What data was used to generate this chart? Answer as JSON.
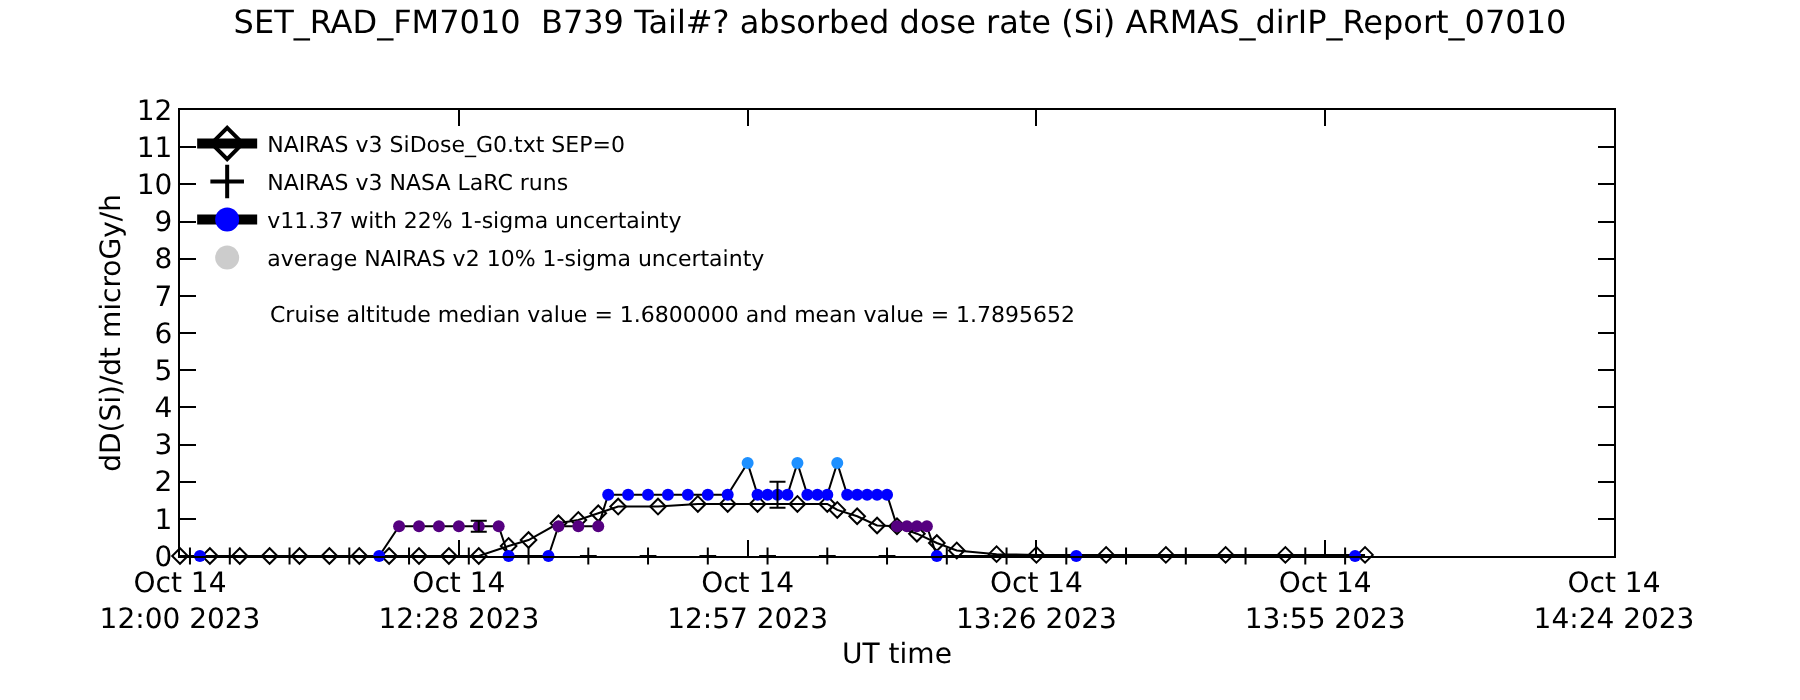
{
  "chart_data": {
    "type": "line",
    "title": "SET_RAD_FM7010  B739 Tail#? absorbed dose rate (Si) ARMAS_dirIP_Report_07010",
    "xlabel": "UT time",
    "ylabel": "dD(Si)/dt microGy/h",
    "xlim": [
      "2023-10-14T12:00",
      "2023-10-14T14:24"
    ],
    "xticks": [
      {
        "value": "2023-10-14T12:00",
        "label": "Oct 14\n12:00 2023"
      },
      {
        "value": "2023-10-14T12:28",
        "label": "Oct 14\n12:28 2023"
      },
      {
        "value": "2023-10-14T12:57",
        "label": "Oct 14\n12:57 2023"
      },
      {
        "value": "2023-10-14T13:26",
        "label": "Oct 14\n13:26 2023"
      },
      {
        "value": "2023-10-14T13:55",
        "label": "Oct 14\n13:55 2023"
      },
      {
        "value": "2023-10-14T14:24",
        "label": "Oct 14\n14:24 2023"
      }
    ],
    "ylim": [
      0,
      12
    ],
    "yticks": [
      0,
      1,
      2,
      3,
      4,
      5,
      6,
      7,
      8,
      9,
      10,
      11,
      12
    ],
    "legend": "top left",
    "series": [
      {
        "name": "NAIRAS v3 SiDose_G0.txt SEP=0",
        "color": "#000000",
        "marker": "diamond",
        "x": [
          "2023-10-14T12:00",
          "2023-10-14T12:03",
          "2023-10-14T12:06",
          "2023-10-14T12:09",
          "2023-10-14T12:12",
          "2023-10-14T12:15",
          "2023-10-14T12:18",
          "2023-10-14T12:21",
          "2023-10-14T12:24",
          "2023-10-14T12:27",
          "2023-10-14T12:30",
          "2023-10-14T12:33",
          "2023-10-14T12:35",
          "2023-10-14T12:38",
          "2023-10-14T12:40",
          "2023-10-14T12:42",
          "2023-10-14T12:44",
          "2023-10-14T12:48",
          "2023-10-14T12:52",
          "2023-10-14T12:55",
          "2023-10-14T12:58",
          "2023-10-14T13:02",
          "2023-10-14T13:05",
          "2023-10-14T13:06",
          "2023-10-14T13:08",
          "2023-10-14T13:10",
          "2023-10-14T13:12",
          "2023-10-14T13:14",
          "2023-10-14T13:16",
          "2023-10-14T13:18",
          "2023-10-14T13:22",
          "2023-10-14T13:26",
          "2023-10-14T13:33",
          "2023-10-14T13:39",
          "2023-10-14T13:45",
          "2023-10-14T13:51",
          "2023-10-14T13:59"
        ],
        "values": [
          0,
          0,
          0,
          0,
          0,
          0,
          0,
          0,
          0,
          0,
          0,
          0.27,
          0.43,
          0.88,
          0.97,
          1.15,
          1.33,
          1.33,
          1.4,
          1.4,
          1.4,
          1.4,
          1.4,
          1.24,
          1.07,
          0.82,
          0.8,
          0.6,
          0.35,
          0.15,
          0.05,
          0.03,
          0.03,
          0.03,
          0.03,
          0.03,
          0.03
        ]
      },
      {
        "name": "NAIRAS v3 NASA LaRC runs",
        "type": "scatter",
        "color": "#000000",
        "marker": "cross",
        "x": [
          "2023-10-14T12:01",
          "2023-10-14T12:05",
          "2023-10-14T12:11",
          "2023-10-14T12:17",
          "2023-10-14T12:23",
          "2023-10-14T12:29",
          "2023-10-14T12:35",
          "2023-10-14T12:41",
          "2023-10-14T12:47",
          "2023-10-14T12:53",
          "2023-10-14T12:59",
          "2023-10-14T13:05",
          "2023-10-14T13:11",
          "2023-10-14T13:17",
          "2023-10-14T13:23",
          "2023-10-14T13:29",
          "2023-10-14T13:35",
          "2023-10-14T13:41",
          "2023-10-14T13:47",
          "2023-10-14T13:53",
          "2023-10-14T13:57"
        ],
        "values": [
          0,
          0,
          0,
          0,
          0,
          0,
          0,
          0,
          0,
          0,
          0,
          0,
          0,
          0,
          0,
          0,
          0,
          0,
          0,
          0,
          0
        ]
      },
      {
        "name": "v11.37 with 22% 1-sigma uncertainty",
        "color": "#000000",
        "marker": "circle",
        "x": [
          "2023-10-14T12:02",
          "2023-10-14T12:20",
          "2023-10-14T12:22",
          "2023-10-14T12:24",
          "2023-10-14T12:26",
          "2023-10-14T12:28",
          "2023-10-14T12:30",
          "2023-10-14T12:32",
          "2023-10-14T12:33",
          "2023-10-14T12:37",
          "2023-10-14T12:38",
          "2023-10-14T12:40",
          "2023-10-14T12:42",
          "2023-10-14T12:43",
          "2023-10-14T12:45",
          "2023-10-14T12:47",
          "2023-10-14T12:49",
          "2023-10-14T12:51",
          "2023-10-14T12:53",
          "2023-10-14T12:55",
          "2023-10-14T12:57",
          "2023-10-14T12:58",
          "2023-10-14T12:59",
          "2023-10-14T13:00",
          "2023-10-14T13:01",
          "2023-10-14T13:02",
          "2023-10-14T13:03",
          "2023-10-14T13:04",
          "2023-10-14T13:05",
          "2023-10-14T13:06",
          "2023-10-14T13:07",
          "2023-10-14T13:08",
          "2023-10-14T13:09",
          "2023-10-14T13:10",
          "2023-10-14T13:11",
          "2023-10-14T13:12",
          "2023-10-14T13:13",
          "2023-10-14T13:14",
          "2023-10-14T13:15",
          "2023-10-14T13:16",
          "2023-10-14T13:30",
          "2023-10-14T13:58"
        ],
        "values": [
          0,
          0,
          0.8,
          0.8,
          0.8,
          0.8,
          0.8,
          0.8,
          0,
          0,
          0.8,
          0.8,
          0.8,
          1.65,
          1.65,
          1.65,
          1.65,
          1.65,
          1.65,
          1.65,
          2.5,
          1.65,
          1.65,
          1.65,
          1.65,
          2.5,
          1.65,
          1.65,
          1.65,
          2.5,
          1.65,
          1.65,
          1.65,
          1.65,
          1.65,
          0.8,
          0.8,
          0.8,
          0.8,
          0,
          0,
          0
        ],
        "colors": [
          "#0000ff",
          "#0000ff",
          "#550080",
          "#550080",
          "#550080",
          "#550080",
          "#550080",
          "#550080",
          "#0000ff",
          "#0000ff",
          "#550080",
          "#550080",
          "#550080",
          "#0000ff",
          "#0000ff",
          "#0000ff",
          "#0000ff",
          "#0000ff",
          "#0000ff",
          "#0000ff",
          "#1e90ff",
          "#0000ff",
          "#0000ff",
          "#0000ff",
          "#0000ff",
          "#1e90ff",
          "#0000ff",
          "#0000ff",
          "#0000ff",
          "#1e90ff",
          "#0000ff",
          "#0000ff",
          "#0000ff",
          "#0000ff",
          "#0000ff",
          "#550080",
          "#550080",
          "#550080",
          "#550080",
          "#0000ff",
          "#0000ff",
          "#0000ff"
        ]
      },
      {
        "name": "average NAIRAS v2 10% 1-sigma uncertainty",
        "type": "scatter",
        "color": "#000000",
        "x": [
          "2023-10-14T12:30",
          "2023-10-14T13:00"
        ],
        "values": [
          0.8,
          1.65
        ],
        "errors": [
          0.15,
          0.35
        ]
      }
    ],
    "annotations": [
      "Cruise altitude median value = 1.6800000 and mean value = 1.7895652"
    ]
  }
}
